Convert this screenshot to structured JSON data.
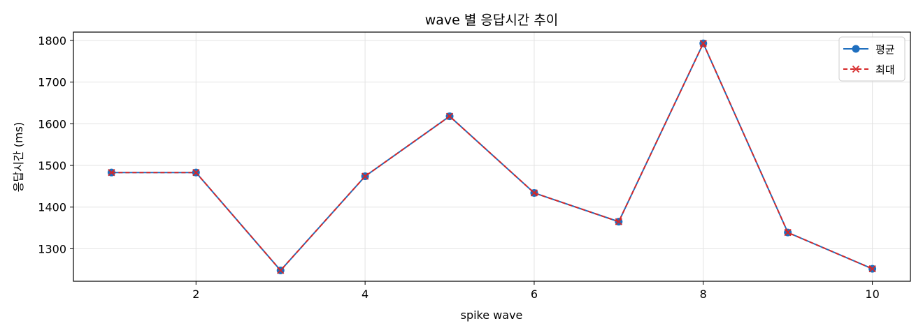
{
  "chart_data": {
    "type": "line",
    "title": "wave 별 응답시간 추이",
    "xlabel": "spike wave",
    "ylabel": "응답시간 (ms)",
    "x": [
      1,
      2,
      3,
      4,
      5,
      6,
      7,
      8,
      9,
      10
    ],
    "x_ticks": [
      2,
      4,
      6,
      8,
      10
    ],
    "y_ticks": [
      1300,
      1400,
      1500,
      1600,
      1700,
      1800
    ],
    "xlim": [
      0.55,
      10.45
    ],
    "ylim": [
      1222,
      1820
    ],
    "grid": true,
    "legend_position": "top-right",
    "series": [
      {
        "name": "평균",
        "color": "#1f6fbf",
        "marker": "circle",
        "line_style": "solid",
        "values": [
          1483,
          1483,
          1248,
          1474,
          1618,
          1434,
          1365,
          1793,
          1339,
          1252
        ]
      },
      {
        "name": "최대",
        "color": "#d62728",
        "marker": "x",
        "line_style": "dashed",
        "values": [
          1483,
          1483,
          1248,
          1474,
          1618,
          1434,
          1365,
          1793,
          1339,
          1252
        ]
      }
    ]
  }
}
